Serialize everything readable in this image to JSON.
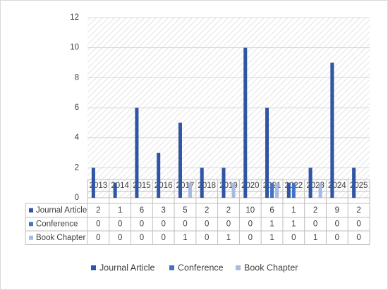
{
  "chart_data": {
    "type": "bar",
    "categories": [
      "2013",
      "2014",
      "2015",
      "2016",
      "2017",
      "2018",
      "2019",
      "2020",
      "2021",
      "2022",
      "2023",
      "2024",
      "2025"
    ],
    "series": [
      {
        "name": "Journal Article",
        "color": "#2f55a4",
        "values": [
          2,
          1,
          6,
          3,
          5,
          2,
          2,
          10,
          6,
          1,
          2,
          9,
          2
        ]
      },
      {
        "name": "Conference",
        "color": "#4472c4",
        "values": [
          0,
          0,
          0,
          0,
          0,
          0,
          0,
          0,
          1,
          1,
          0,
          0,
          0
        ]
      },
      {
        "name": "Book Chapter",
        "color": "#a9b9e2",
        "values": [
          0,
          0,
          0,
          0,
          1,
          0,
          1,
          0,
          1,
          0,
          1,
          0,
          0
        ]
      }
    ],
    "ylim": [
      0,
      12
    ],
    "yticks": [
      0,
      2,
      4,
      6,
      8,
      10,
      12
    ],
    "grid": true,
    "legend": "bottom"
  }
}
